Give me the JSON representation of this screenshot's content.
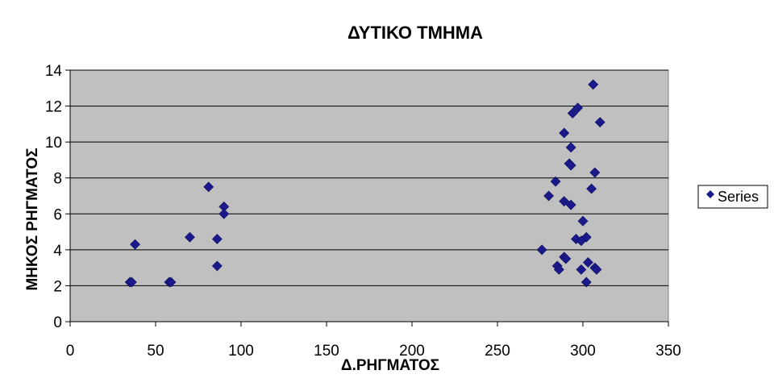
{
  "chart_data": {
    "type": "scatter",
    "title": "ΔΥΤΙΚΟ ΤΜΗΜΑ",
    "xlabel": "Δ.ΡΗΓΜΑΤΟΣ",
    "ylabel": "ΜΗΚΟΣ ΡΗΓΜΑΤΟΣ",
    "xlim": [
      0,
      350
    ],
    "ylim": [
      0,
      14
    ],
    "xticks": [
      0,
      50,
      100,
      150,
      200,
      250,
      300,
      350
    ],
    "yticks": [
      0,
      2,
      4,
      6,
      8,
      10,
      12,
      14
    ],
    "grid": true,
    "legend_position": "right",
    "colors": {
      "marker": "#1a1a8c",
      "plot_bg": "#c0c0c0",
      "grid": "#000000"
    },
    "series": [
      {
        "name": "Series",
        "points": [
          [
            35,
            2.2
          ],
          [
            36,
            2.2
          ],
          [
            38,
            4.3
          ],
          [
            58,
            2.2
          ],
          [
            59,
            2.2
          ],
          [
            70,
            4.7
          ],
          [
            81,
            7.5
          ],
          [
            86,
            4.6
          ],
          [
            86,
            3.1
          ],
          [
            90,
            6.4
          ],
          [
            90,
            6.0
          ],
          [
            276,
            4.0
          ],
          [
            280,
            7.0
          ],
          [
            284,
            7.8
          ],
          [
            285,
            3.1
          ],
          [
            286,
            2.9
          ],
          [
            289,
            3.6
          ],
          [
            289,
            10.5
          ],
          [
            289,
            6.7
          ],
          [
            290,
            3.5
          ],
          [
            292,
            8.8
          ],
          [
            293,
            8.7
          ],
          [
            293,
            9.7
          ],
          [
            293,
            6.5
          ],
          [
            294,
            11.6
          ],
          [
            296,
            4.6
          ],
          [
            297,
            11.9
          ],
          [
            299,
            2.9
          ],
          [
            299,
            4.5
          ],
          [
            300,
            5.6
          ],
          [
            302,
            4.7
          ],
          [
            302,
            2.2
          ],
          [
            303,
            3.3
          ],
          [
            305,
            7.4
          ],
          [
            306,
            13.2
          ],
          [
            307,
            8.3
          ],
          [
            307,
            3.0
          ],
          [
            308,
            2.9
          ],
          [
            310,
            11.1
          ]
        ]
      }
    ]
  }
}
